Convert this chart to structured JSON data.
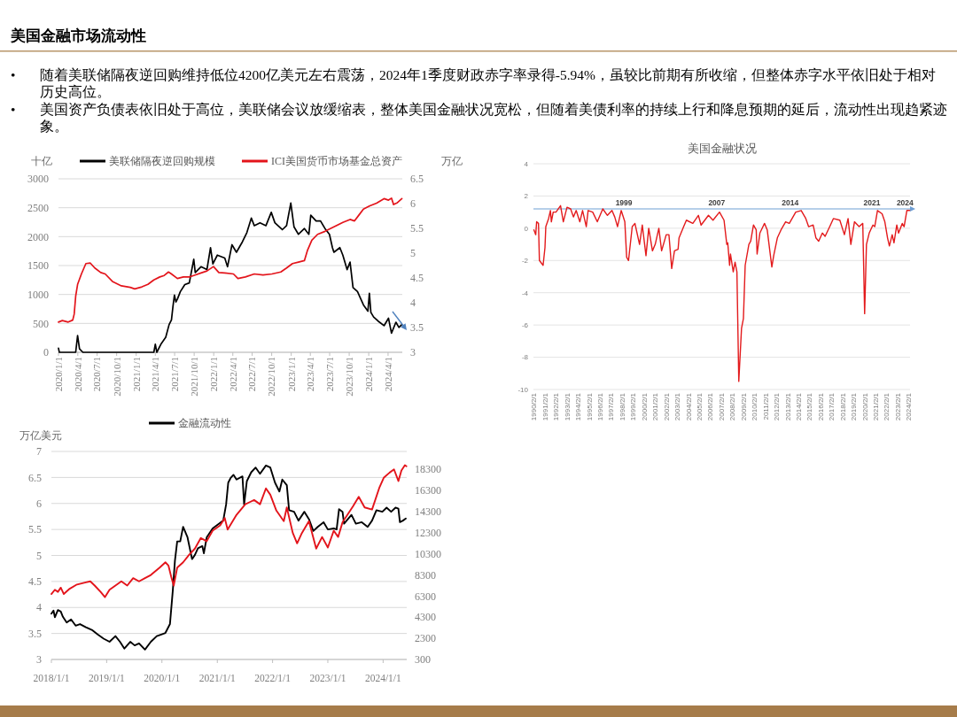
{
  "chart_data": [
    {
      "type": "other",
      "title": "美国金融市场流动性",
      "annotations": [
        "• 随着美联储隔夜逆回购维持低位4200亿美元左右震荡，2024年1季度财政赤字率录得-5.94%，虽较比前期有所收缩，但整体赤字水平依旧处于相对历史高位。",
        "• 美国资产负债表依旧处于高位，美联储会议放缓缩表，整体美国金融状况宽松，但随着美债利率的持续上行和降息预期的延后，流动性出现趋紧迹象。"
      ]
    },
    {
      "type": "line",
      "ylabel": "十亿",
      "y2label": "万亿",
      "legend": "top",
      "grid": "y",
      "xlim": [
        "2020-01-01",
        "2024-06-07"
      ],
      "xticks": [
        {
          "value": "2020-01-01",
          "label": "2020/1/1"
        },
        {
          "value": "2020-04-01",
          "label": "2020/4/1"
        },
        {
          "value": "2020-07-01",
          "label": "2020/7/1"
        },
        {
          "value": "2020-10-01",
          "label": "2020/10/1"
        },
        {
          "value": "2021-01-01",
          "label": "2021/1/1"
        },
        {
          "value": "2021-04-01",
          "label": "2021/4/1"
        },
        {
          "value": "2021-07-01",
          "label": "2021/7/1"
        },
        {
          "value": "2021-10-01",
          "label": "2021/10/1"
        },
        {
          "value": "2022-01-01",
          "label": "2022/1/1"
        },
        {
          "value": "2022-04-01",
          "label": "2022/4/1"
        },
        {
          "value": "2022-07-01",
          "label": "2022/7/1"
        },
        {
          "value": "2022-10-01",
          "label": "2022/10/1"
        },
        {
          "value": "2023-01-01",
          "label": "2023/1/1"
        },
        {
          "value": "2023-04-01",
          "label": "2023/4/1"
        },
        {
          "value": "2023-07-01",
          "label": "2023/7/1"
        },
        {
          "value": "2023-10-01",
          "label": "2023/10/1"
        },
        {
          "value": "2024-01-01",
          "label": "2024/1/1"
        },
        {
          "value": "2024-04-01",
          "label": "2024/4/1"
        }
      ],
      "ylim": [
        0,
        3000
      ],
      "yticks": [
        0,
        500,
        1000,
        1500,
        2000,
        2500,
        3000
      ],
      "y2lim": [
        3,
        6.5
      ],
      "y2ticks": [
        3,
        3.5,
        4,
        4.5,
        5,
        5.5,
        6,
        6.5
      ],
      "series": [
        {
          "name": "美联储隔夜逆回购规模",
          "color": "#000000",
          "x": [
            "2020-01-01",
            "2020-01-05",
            "2020-03-22",
            "2020-03-31",
            "2020-04-09",
            "2020-04-25",
            "2021-03-25",
            "2021-04-01",
            "2021-04-08",
            "2021-04-29",
            "2021-05-20",
            "2021-06-05",
            "2021-06-16",
            "2021-06-23",
            "2021-06-30",
            "2021-07-07",
            "2021-07-14",
            "2021-07-28",
            "2021-08-18",
            "2021-09-08",
            "2021-09-29",
            "2021-10-06",
            "2021-11-02",
            "2021-11-30",
            "2021-12-17",
            "2021-12-28",
            "2022-01-18",
            "2022-02-22",
            "2022-03-07",
            "2022-03-28",
            "2022-04-18",
            "2022-05-16",
            "2022-06-06",
            "2022-06-27",
            "2022-07-11",
            "2022-08-07",
            "2022-09-04",
            "2022-09-29",
            "2022-10-16",
            "2022-11-20",
            "2022-12-10",
            "2022-12-30",
            "2023-01-14",
            "2023-02-04",
            "2023-03-04",
            "2023-03-25",
            "2023-04-03",
            "2023-04-28",
            "2023-05-19",
            "2023-06-09",
            "2023-06-30",
            "2023-07-14",
            "2023-07-21",
            "2023-08-18",
            "2023-09-01",
            "2023-09-21",
            "2023-10-05",
            "2023-10-19",
            "2023-11-09",
            "2023-12-07",
            "2023-12-28",
            "2024-01-04",
            "2024-01-11",
            "2024-01-24",
            "2024-02-14",
            "2024-03-13",
            "2024-04-03",
            "2024-04-17",
            "2024-05-08",
            "2024-05-22",
            "2024-06-05"
          ],
          "values": [
            70,
            0,
            0,
            290,
            60,
            0,
            0,
            140,
            0,
            150,
            260,
            480,
            560,
            790,
            990,
            870,
            920,
            1050,
            1170,
            1200,
            1610,
            1380,
            1480,
            1430,
            1810,
            1530,
            1680,
            1630,
            1480,
            1860,
            1730,
            1910,
            2070,
            2320,
            2190,
            2240,
            2190,
            2420,
            2240,
            2120,
            2190,
            2580,
            2170,
            2040,
            2140,
            2040,
            2370,
            2270,
            2270,
            2140,
            2040,
            1810,
            1730,
            1810,
            1680,
            1430,
            1560,
            1120,
            1050,
            820,
            710,
            1020,
            690,
            610,
            540,
            460,
            590,
            330,
            520,
            430,
            480
          ]
        },
        {
          "name": "ICI美国货币市场基金总资产",
          "color": "#e3141b",
          "axis": "y2",
          "x": [
            "2020-01-01",
            "2020-01-19",
            "2020-02-16",
            "2020-03-08",
            "2020-03-15",
            "2020-03-22",
            "2020-03-31",
            "2020-04-18",
            "2020-05-09",
            "2020-05-30",
            "2020-06-20",
            "2020-07-18",
            "2020-08-08",
            "2020-09-11",
            "2020-10-23",
            "2020-12-04",
            "2020-12-25",
            "2021-01-28",
            "2021-02-25",
            "2021-03-25",
            "2021-04-22",
            "2021-05-13",
            "2021-06-02",
            "2021-06-16",
            "2021-07-14",
            "2021-08-11",
            "2021-09-08",
            "2021-09-29",
            "2021-11-02",
            "2021-11-30",
            "2021-12-31",
            "2022-01-25",
            "2022-02-22",
            "2022-04-04",
            "2022-04-25",
            "2022-05-30",
            "2022-07-11",
            "2022-08-21",
            "2022-10-02",
            "2022-11-13",
            "2022-12-10",
            "2023-01-07",
            "2023-02-04",
            "2023-03-04",
            "2023-03-18",
            "2023-04-08",
            "2023-05-05",
            "2023-06-09",
            "2023-07-21",
            "2023-09-01",
            "2023-10-05",
            "2023-10-26",
            "2023-11-16",
            "2023-12-07",
            "2024-01-04",
            "2024-02-07",
            "2024-03-13",
            "2024-04-03",
            "2024-04-17",
            "2024-04-27",
            "2024-05-15",
            "2024-06-05"
          ],
          "values": [
            3.61,
            3.64,
            3.61,
            3.65,
            3.77,
            4.13,
            4.37,
            4.58,
            4.79,
            4.8,
            4.7,
            4.61,
            4.58,
            4.43,
            4.34,
            4.31,
            4.28,
            4.32,
            4.37,
            4.46,
            4.52,
            4.55,
            4.62,
            4.58,
            4.49,
            4.52,
            4.52,
            4.55,
            4.6,
            4.64,
            4.73,
            4.61,
            4.6,
            4.58,
            4.49,
            4.52,
            4.58,
            4.56,
            4.58,
            4.62,
            4.7,
            4.79,
            4.82,
            4.85,
            5.05,
            5.26,
            5.38,
            5.44,
            5.53,
            5.62,
            5.68,
            5.65,
            5.77,
            5.89,
            5.95,
            6.01,
            6.1,
            6.07,
            6.11,
            5.98,
            6.02,
            6.1
          ]
        }
      ]
    },
    {
      "type": "line",
      "title": "美国金融状况",
      "grid": "y",
      "xlim": [
        "1990-01-15",
        "2024-03-15"
      ],
      "xticks": [
        {
          "value": "1990-02-01",
          "label": "1990/2/1"
        },
        {
          "value": "1991-02-01",
          "label": "1991/2/1"
        },
        {
          "value": "1992-02-01",
          "label": "1992/2/1"
        },
        {
          "value": "1993-02-01",
          "label": "1993/2/1"
        },
        {
          "value": "1994-02-01",
          "label": "1994/2/1"
        },
        {
          "value": "1995-02-01",
          "label": "1995/2/1"
        },
        {
          "value": "1996-02-01",
          "label": "1996/2/1"
        },
        {
          "value": "1997-02-01",
          "label": "1997/2/1"
        },
        {
          "value": "1998-02-01",
          "label": "1998/2/1"
        },
        {
          "value": "1999-02-01",
          "label": "1999/2/1"
        },
        {
          "value": "2000-02-01",
          "label": "2000/2/1"
        },
        {
          "value": "2001-02-01",
          "label": "2001/2/1"
        },
        {
          "value": "2002-02-01",
          "label": "2002/2/1"
        },
        {
          "value": "2003-02-01",
          "label": "2003/2/1"
        },
        {
          "value": "2004-02-01",
          "label": "2004/2/1"
        },
        {
          "value": "2005-02-01",
          "label": "2005/2/1"
        },
        {
          "value": "2006-02-01",
          "label": "2006/2/1"
        },
        {
          "value": "2007-02-01",
          "label": "2007/2/1"
        },
        {
          "value": "2008-02-01",
          "label": "2008/2/1"
        },
        {
          "value": "2009-02-01",
          "label": "2009/2/1"
        },
        {
          "value": "2010-02-01",
          "label": "2010/2/1"
        },
        {
          "value": "2011-02-01",
          "label": "2011/2/1"
        },
        {
          "value": "2012-02-01",
          "label": "2012/2/1"
        },
        {
          "value": "2013-02-01",
          "label": "2013/2/1"
        },
        {
          "value": "2014-02-01",
          "label": "2014/2/1"
        },
        {
          "value": "2015-02-01",
          "label": "2015/2/1"
        },
        {
          "value": "2016-02-01",
          "label": "2016/2/1"
        },
        {
          "value": "2017-02-01",
          "label": "2017/2/1"
        },
        {
          "value": "2018-02-01",
          "label": "2018/2/1"
        },
        {
          "value": "2019-02-01",
          "label": "2019/2/1"
        },
        {
          "value": "2020-02-01",
          "label": "2020/2/1"
        },
        {
          "value": "2021-02-01",
          "label": "2021/2/1"
        },
        {
          "value": "2022-02-01",
          "label": "2022/2/1"
        },
        {
          "value": "2023-02-01",
          "label": "2023/2/1"
        },
        {
          "value": "2024-02-01",
          "label": "2024/2/1"
        }
      ],
      "ylim": [
        -10,
        4
      ],
      "yticks": [
        -10,
        -8,
        -6,
        -4,
        -2,
        0,
        2,
        4
      ],
      "series": [
        {
          "color": "#e31a1c",
          "x": [
            "1990-02",
            "1990-04",
            "1990-05",
            "1990-07",
            "1990-08",
            "1990-12",
            "1991-02",
            "1991-03",
            "1991-06",
            "1991-08",
            "1991-09",
            "1991-11",
            "1992-02",
            "1992-07",
            "1992-10",
            "1993-02",
            "1993-06",
            "1993-09",
            "1993-12",
            "1994-04",
            "1994-07",
            "1994-11",
            "1995-01",
            "1995-06",
            "1995-11",
            "1996-05",
            "1996-10",
            "1997-03",
            "1997-06",
            "1997-09",
            "1998-01",
            "1998-05",
            "1998-07",
            "1998-09",
            "1999-01",
            "1999-04",
            "1999-09",
            "1999-12",
            "2000-04",
            "2000-07",
            "2000-11",
            "2001-02",
            "2001-06",
            "2001-09",
            "2002-02",
            "2002-05",
            "2002-08",
            "2002-11",
            "2003-03",
            "2003-04",
            "2003-09",
            "2003-12",
            "2004-07",
            "2005-01",
            "2005-04",
            "2005-12",
            "2006-05",
            "2006-12",
            "2007-05",
            "2007-08",
            "2007-09",
            "2007-11",
            "2007-12",
            "2008-03",
            "2008-05",
            "2008-07",
            "2008-09",
            "2008-12",
            "2009-02",
            "2009-04",
            "2009-08",
            "2009-10",
            "2010-01",
            "2010-04",
            "2010-05",
            "2010-08",
            "2011-01",
            "2011-04",
            "2011-09",
            "2011-11",
            "2012-03",
            "2012-07",
            "2012-12",
            "2013-04",
            "2013-11",
            "2014-05",
            "2014-10",
            "2015-01",
            "2015-06",
            "2015-09",
            "2015-12",
            "2016-04",
            "2016-07",
            "2016-12",
            "2017-04",
            "2017-11",
            "2018-04",
            "2018-08",
            "2018-11",
            "2019-03",
            "2019-08",
            "2019-12",
            "2020-02",
            "2020-04",
            "2020-07",
            "2020-11",
            "2021-01",
            "2021-04",
            "2021-09",
            "2021-12",
            "2022-03",
            "2022-05",
            "2022-08",
            "2022-10",
            "2023-01",
            "2023-03",
            "2023-07",
            "2023-09",
            "2023-12",
            "2024-03"
          ],
          "values": [
            -0.1,
            -0.4,
            0.4,
            0.3,
            -2.0,
            -2.3,
            -1.2,
            0.1,
            0.6,
            1.1,
            0.4,
            1.0,
            1.0,
            1.4,
            0.4,
            1.3,
            1.2,
            0.7,
            1.1,
            0.4,
            1.1,
            0.1,
            1.1,
            1.0,
            0.4,
            1.2,
            0.8,
            1.1,
            0.7,
            0.1,
            1.1,
            0.4,
            -1.8,
            -2.0,
            0.1,
            0.3,
            -1.0,
            0.2,
            -1.7,
            0.0,
            -1.4,
            -1.0,
            0.0,
            -1.4,
            -0.4,
            -0.4,
            -2.5,
            -1.4,
            -1.3,
            -0.6,
            0.1,
            0.5,
            0.3,
            0.8,
            0.2,
            0.8,
            0.5,
            1.0,
            0.5,
            -1.0,
            -0.9,
            -2.3,
            -1.6,
            -2.7,
            -2.1,
            -2.7,
            -9.5,
            -6.2,
            -5.6,
            -2.3,
            -1.0,
            -0.8,
            0.2,
            -0.1,
            -1.6,
            -0.3,
            0.3,
            -0.1,
            -2.4,
            -1.7,
            -0.6,
            -0.1,
            0.4,
            0.3,
            1.0,
            1.1,
            0.6,
            0.1,
            0.2,
            -0.6,
            -0.8,
            -0.3,
            -0.5,
            0.1,
            0.6,
            0.5,
            -0.4,
            0.6,
            -1.0,
            0.4,
            0.1,
            0.3,
            -5.3,
            -1.0,
            -0.3,
            0.2,
            0.1,
            1.1,
            0.9,
            0.4,
            -0.6,
            -1.1,
            -0.4,
            -0.9,
            0.2,
            -0.3,
            0.3,
            0.1,
            1.1,
            1.1
          ]
        }
      ],
      "ref_lines": [
        {
          "axis": "y",
          "value": 1.2,
          "color": "#6f9fd3"
        }
      ],
      "annotations": [
        {
          "text": "1999",
          "x": "1998-04",
          "y": 1.2
        },
        {
          "text": "2007",
          "x": "2006-09",
          "y": 1.2
        },
        {
          "text": "2014",
          "x": "2013-05",
          "y": 1.2
        },
        {
          "text": "2021",
          "x": "2020-10",
          "y": 1.2
        },
        {
          "text": "2024",
          "x": "2023-10",
          "y": 1.2
        }
      ]
    },
    {
      "type": "line",
      "ylabel": "万亿美元",
      "legend": "top",
      "grid": "y",
      "xlim": [
        "2018-01-01",
        "2024-06-05"
      ],
      "xticks": [
        {
          "value": "2018-01-01",
          "label": "2018/1/1"
        },
        {
          "value": "2019-01-01",
          "label": "2019/1/1"
        },
        {
          "value": "2020-01-01",
          "label": "2020/1/1"
        },
        {
          "value": "2021-01-01",
          "label": "2021/1/1"
        },
        {
          "value": "2022-01-01",
          "label": "2022/1/1"
        },
        {
          "value": "2023-01-01",
          "label": "2023/1/1"
        },
        {
          "value": "2024-01-01",
          "label": "2024/1/1"
        }
      ],
      "ylim": [
        3,
        7
      ],
      "yticks": [
        3,
        3.5,
        4,
        4.5,
        5,
        5.5,
        6,
        6.5,
        7
      ],
      "y2lim": [
        300,
        20000
      ],
      "y2ticks": [
        300,
        2300,
        4300,
        6300,
        8300,
        10300,
        12300,
        14300,
        16300,
        18300
      ],
      "series": [
        {
          "name": "金融流动性",
          "color": "#000000",
          "x": [
            "2018-01-01",
            "2018-01-15",
            "2018-01-24",
            "2018-02-13",
            "2018-03-04",
            "2018-03-18",
            "2018-04-12",
            "2018-05-11",
            "2018-06-10",
            "2018-07-09",
            "2018-08-17",
            "2018-09-25",
            "2018-11-03",
            "2018-12-12",
            "2019-01-20",
            "2019-02-28",
            "2019-03-30",
            "2019-04-28",
            "2019-06-06",
            "2019-07-05",
            "2019-08-03",
            "2019-09-11",
            "2019-10-20",
            "2019-11-28",
            "2019-12-27",
            "2020-01-24",
            "2020-02-23",
            "2020-03-13",
            "2020-03-27",
            "2020-04-11",
            "2020-05-01",
            "2020-05-20",
            "2020-06-18",
            "2020-07-18",
            "2020-08-06",
            "2020-08-26",
            "2020-09-24",
            "2020-10-04",
            "2020-10-23",
            "2020-12-01",
            "2021-01-11",
            "2021-02-09",
            "2021-02-28",
            "2021-03-14",
            "2021-03-30",
            "2021-04-18",
            "2021-05-08",
            "2021-06-16",
            "2021-06-27",
            "2021-07-15",
            "2021-08-13",
            "2021-09-11",
            "2021-10-10",
            "2021-11-18",
            "2021-12-17",
            "2022-01-17",
            "2022-02-15",
            "2022-03-06",
            "2022-04-05",
            "2022-04-20",
            "2022-05-23",
            "2022-06-21",
            "2022-07-30",
            "2022-08-29",
            "2022-09-27",
            "2022-10-26",
            "2022-12-04",
            "2023-01-01",
            "2023-02-09",
            "2023-02-28",
            "2023-03-16",
            "2023-04-08",
            "2023-04-18",
            "2023-06-06",
            "2023-07-05",
            "2023-08-13",
            "2023-09-21",
            "2023-10-20",
            "2023-11-18",
            "2023-12-27",
            "2024-01-24",
            "2024-02-23",
            "2024-03-23",
            "2024-04-11",
            "2024-04-21",
            "2024-05-11",
            "2024-05-30"
          ],
          "values": [
            3.88,
            3.94,
            3.81,
            3.95,
            3.92,
            3.82,
            3.71,
            3.77,
            3.65,
            3.68,
            3.62,
            3.57,
            3.48,
            3.4,
            3.34,
            3.45,
            3.34,
            3.21,
            3.34,
            3.27,
            3.31,
            3.19,
            3.34,
            3.45,
            3.48,
            3.51,
            3.68,
            4.33,
            4.9,
            5.27,
            5.27,
            5.55,
            5.35,
            4.93,
            5.01,
            5.14,
            5.18,
            5.04,
            5.35,
            5.52,
            5.61,
            5.67,
            5.98,
            6.4,
            6.49,
            6.55,
            6.46,
            6.52,
            5.98,
            6.43,
            6.6,
            6.69,
            6.57,
            6.73,
            6.69,
            6.4,
            6.23,
            6.46,
            6.35,
            5.87,
            5.84,
            5.67,
            5.84,
            5.7,
            5.47,
            5.55,
            5.64,
            5.5,
            5.52,
            5.5,
            5.89,
            5.84,
            5.61,
            5.78,
            5.61,
            5.64,
            5.55,
            5.67,
            5.87,
            5.84,
            5.92,
            5.84,
            5.92,
            5.9,
            5.64,
            5.67,
            5.71
          ]
        },
        {
          "color": "#e3141b",
          "axis": "y2",
          "x": [
            "2018-01-01",
            "2018-01-24",
            "2018-02-13",
            "2018-03-04",
            "2018-03-24",
            "2018-05-02",
            "2018-06-19",
            "2018-08-17",
            "2018-09-15",
            "2018-10-14",
            "2018-11-22",
            "2018-12-21",
            "2019-01-20",
            "2019-02-28",
            "2019-04-08",
            "2019-05-17",
            "2019-06-25",
            "2019-08-03",
            "2019-09-11",
            "2019-10-20",
            "2019-12-17",
            "2020-01-24",
            "2020-02-13",
            "2020-03-03",
            "2020-03-19",
            "2020-04-11",
            "2020-05-20",
            "2020-06-28",
            "2020-08-06",
            "2020-09-14",
            "2020-10-23",
            "2020-12-01",
            "2021-01-20",
            "2021-02-19",
            "2021-03-10",
            "2021-05-08",
            "2021-07-05",
            "2021-08-03",
            "2021-09-01",
            "2021-10-10",
            "2021-11-18",
            "2021-12-17",
            "2022-01-26",
            "2022-03-16",
            "2022-04-05",
            "2022-05-14",
            "2022-06-12",
            "2022-07-11",
            "2022-08-29",
            "2022-10-16",
            "2022-11-24",
            "2023-01-01",
            "2023-02-09",
            "2023-03-10",
            "2023-04-08",
            "2023-06-16",
            "2023-07-24",
            "2023-09-01",
            "2023-10-20",
            "2023-12-08",
            "2024-01-05",
            "2024-02-13",
            "2024-03-13",
            "2024-04-11",
            "2024-05-01",
            "2024-05-24",
            "2024-06-03"
          ],
          "values": [
            6500,
            6900,
            6700,
            7100,
            6500,
            7000,
            7400,
            7600,
            7700,
            7300,
            6700,
            6200,
            6900,
            7300,
            7700,
            7300,
            8000,
            7700,
            8000,
            8300,
            9000,
            9500,
            9200,
            8100,
            7300,
            9000,
            9500,
            10200,
            10800,
            11800,
            11500,
            12500,
            13000,
            13700,
            12600,
            14000,
            15000,
            15200,
            15400,
            15000,
            16500,
            15900,
            14400,
            13400,
            14700,
            12300,
            11300,
            12200,
            13400,
            10800,
            11900,
            10900,
            12500,
            11900,
            13300,
            14800,
            15700,
            14700,
            14500,
            16600,
            17500,
            18000,
            18300,
            17200,
            18200,
            18700,
            18600
          ]
        }
      ]
    }
  ]
}
